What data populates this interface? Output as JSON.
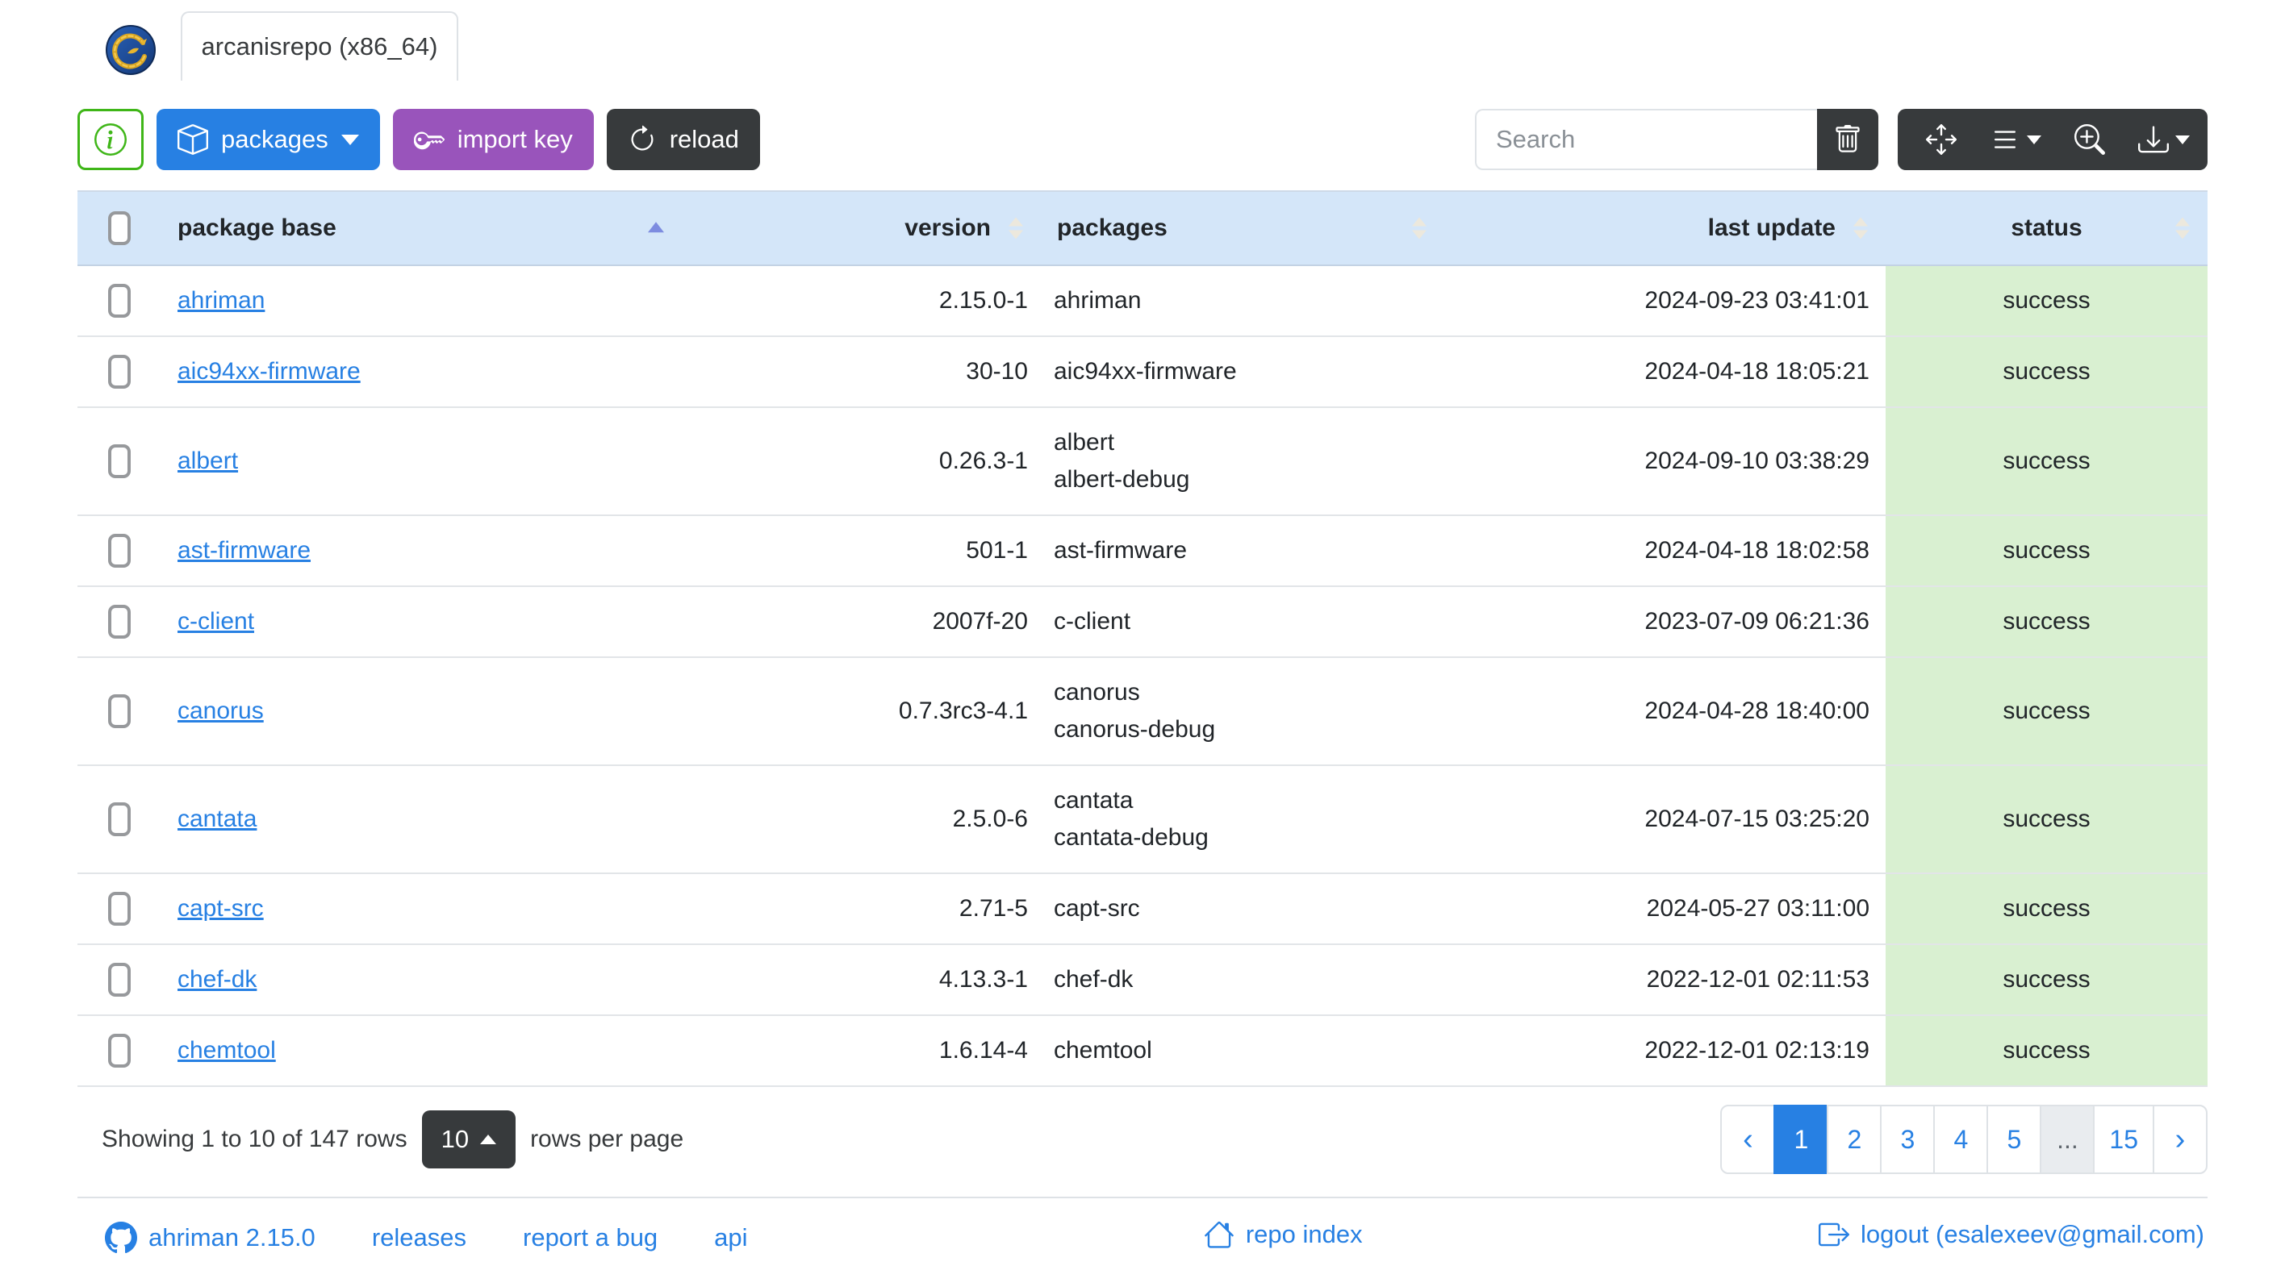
{
  "header": {
    "tab_title": "arcanisrepo (x86_64)"
  },
  "toolbar": {
    "packages_label": "packages",
    "import_key_label": "import key",
    "reload_label": "reload",
    "search_placeholder": "Search"
  },
  "table": {
    "columns": [
      {
        "label": "package base",
        "sorted": "asc"
      },
      {
        "label": "version"
      },
      {
        "label": "packages"
      },
      {
        "label": "last update"
      },
      {
        "label": "status"
      }
    ],
    "rows": [
      {
        "base": "ahriman",
        "version": "2.15.0-1",
        "packages": [
          "ahriman"
        ],
        "last_update": "2024-09-23 03:41:01",
        "status": "success"
      },
      {
        "base": "aic94xx-firmware",
        "version": "30-10",
        "packages": [
          "aic94xx-firmware"
        ],
        "last_update": "2024-04-18 18:05:21",
        "status": "success"
      },
      {
        "base": "albert",
        "version": "0.26.3-1",
        "packages": [
          "albert",
          "albert-debug"
        ],
        "last_update": "2024-09-10 03:38:29",
        "status": "success"
      },
      {
        "base": "ast-firmware",
        "version": "501-1",
        "packages": [
          "ast-firmware"
        ],
        "last_update": "2024-04-18 18:02:58",
        "status": "success"
      },
      {
        "base": "c-client",
        "version": "2007f-20",
        "packages": [
          "c-client"
        ],
        "last_update": "2023-07-09 06:21:36",
        "status": "success"
      },
      {
        "base": "canorus",
        "version": "0.7.3rc3-4.1",
        "packages": [
          "canorus",
          "canorus-debug"
        ],
        "last_update": "2024-04-28 18:40:00",
        "status": "success"
      },
      {
        "base": "cantata",
        "version": "2.5.0-6",
        "packages": [
          "cantata",
          "cantata-debug"
        ],
        "last_update": "2024-07-15 03:25:20",
        "status": "success"
      },
      {
        "base": "capt-src",
        "version": "2.71-5",
        "packages": [
          "capt-src"
        ],
        "last_update": "2024-05-27 03:11:00",
        "status": "success"
      },
      {
        "base": "chef-dk",
        "version": "4.13.3-1",
        "packages": [
          "chef-dk"
        ],
        "last_update": "2022-12-01 02:11:53",
        "status": "success"
      },
      {
        "base": "chemtool",
        "version": "1.6.14-4",
        "packages": [
          "chemtool"
        ],
        "last_update": "2022-12-01 02:13:19",
        "status": "success"
      }
    ]
  },
  "pagination": {
    "summary": "Showing 1 to 10 of 147 rows",
    "page_size": "10",
    "rows_per_page_label": "rows per page",
    "prev": "‹",
    "next": "›",
    "pages": [
      "1",
      "2",
      "3",
      "4",
      "5",
      "...",
      "15"
    ],
    "active_page": "1"
  },
  "footer": {
    "app_version": "ahriman 2.15.0",
    "releases": "releases",
    "report_bug": "report a bug",
    "api": "api",
    "repo_index": "repo index",
    "logout": "logout (esalexeev@gmail.com)"
  },
  "colors": {
    "primary_blue": "#2780e3",
    "import_key_purple": "#9954bb",
    "dark_button": "#373a3c",
    "info_green": "#3fb618",
    "table_header_bg": "#d4e6f9",
    "status_success_bg": "#d9f0d1",
    "sort_arrow_active": "#7d8ce0"
  }
}
